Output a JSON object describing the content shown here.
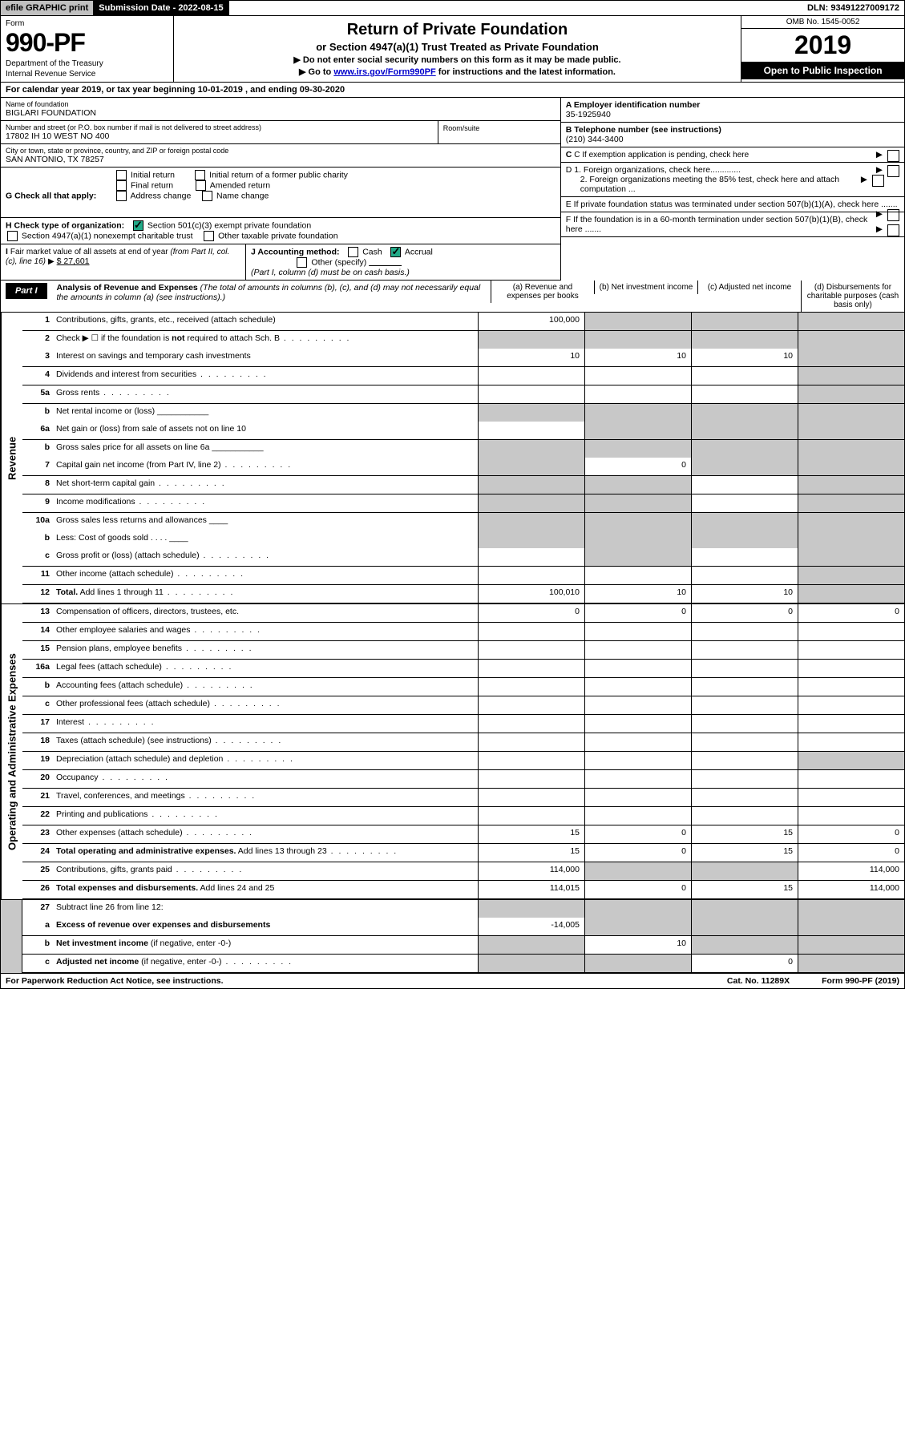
{
  "top": {
    "efile": "efile GRAPHIC print",
    "submission": "Submission Date - 2022-08-15",
    "dln": "DLN: 93491227009172"
  },
  "header": {
    "form_label": "Form",
    "form_number": "990-PF",
    "dept1": "Department of the Treasury",
    "dept2": "Internal Revenue Service",
    "title": "Return of Private Foundation",
    "subtitle": "or Section 4947(a)(1) Trust Treated as Private Foundation",
    "instr1": "▶ Do not enter social security numbers on this form as it may be made public.",
    "instr2": "▶ Go to ",
    "instr2_link": "www.irs.gov/Form990PF",
    "instr2_end": " for instructions and the latest information.",
    "omb": "OMB No. 1545-0052",
    "year": "2019",
    "open": "Open to Public Inspection"
  },
  "cal_year": "For calendar year 2019, or tax year beginning 10-01-2019                        , and ending 09-30-2020",
  "name": {
    "label": "Name of foundation",
    "value": "BIGLARI FOUNDATION"
  },
  "ein": {
    "label": "A Employer identification number",
    "value": "35-1925940"
  },
  "address": {
    "label": "Number and street (or P.O. box number if mail is not delivered to street address)",
    "value": "17802 IH 10 WEST NO 400",
    "room_label": "Room/suite"
  },
  "phone": {
    "label": "B Telephone number (see instructions)",
    "value": "(210) 344-3400"
  },
  "city": {
    "label": "City or town, state or province, country, and ZIP or foreign postal code",
    "value": "SAN ANTONIO, TX  78257"
  },
  "c_exempt": "C If exemption application is pending, check here",
  "g_check": {
    "label": "G Check all that apply:",
    "opts": [
      "Initial return",
      "Final return",
      "Address change",
      "Initial return of a former public charity",
      "Amended return",
      "Name change"
    ]
  },
  "d1": "D 1. Foreign organizations, check here.............",
  "d2": "2. Foreign organizations meeting the 85% test, check here and attach computation ...",
  "e": "E  If private foundation status was terminated under section 507(b)(1)(A), check here .......",
  "h_check": {
    "label": "H Check type of organization:",
    "opt1": "Section 501(c)(3) exempt private foundation",
    "opt2": "Section 4947(a)(1) nonexempt charitable trust",
    "opt3": "Other taxable private foundation"
  },
  "i_fmv": {
    "label": "I Fair market value of all assets at end of year (from Part II, col. (c), line 16)",
    "value": "$  27,601"
  },
  "j_acct": {
    "label": "J Accounting method:",
    "cash": "Cash",
    "accrual": "Accrual",
    "other": "Other (specify)",
    "note": "(Part I, column (d) must be on cash basis.)"
  },
  "f": "F  If the foundation is in a 60-month termination under section 507(b)(1)(B), check here .......",
  "part1": {
    "label": "Part I",
    "title": "Analysis of Revenue and Expenses",
    "note": " (The total of amounts in columns (b), (c), and (d) may not necessarily equal the amounts in column (a) (see instructions).)",
    "cols": {
      "a": "(a)    Revenue and expenses per books",
      "b": "(b)    Net investment income",
      "c": "(c)    Adjusted net income",
      "d": "(d)    Disbursements for charitable purposes (cash basis only)"
    }
  },
  "revenue_label": "Revenue",
  "expenses_label": "Operating and Administrative Expenses",
  "rows_rev": [
    {
      "ln": "1",
      "desc": "Contributions, gifts, grants, etc., received (attach schedule)",
      "a": "100,000",
      "b": "",
      "c": "",
      "d": "",
      "bb": true,
      "shade_b": true,
      "shade_c": true,
      "shade_d": true
    },
    {
      "ln": "2",
      "desc": "Check ▶ ☐ if the foundation is <b>not</b> required to attach Sch. B",
      "a": "",
      "b": "",
      "c": "",
      "d": "",
      "shade_a": true,
      "shade_b": true,
      "shade_c": true,
      "shade_d": true,
      "dots": true
    },
    {
      "ln": "3",
      "desc": "Interest on savings and temporary cash investments",
      "a": "10",
      "b": "10",
      "c": "10",
      "d": "",
      "bb": true,
      "shade_d": true
    },
    {
      "ln": "4",
      "desc": "Dividends and interest from securities",
      "a": "",
      "b": "",
      "c": "",
      "d": "",
      "bb": true,
      "dots": true,
      "shade_d": true
    },
    {
      "ln": "5a",
      "desc": "Gross rents",
      "a": "",
      "b": "",
      "c": "",
      "d": "",
      "bb": true,
      "dots": true,
      "shade_d": true
    },
    {
      "ln": "b",
      "desc": "Net rental income or (loss)  ___________",
      "a": "",
      "b": "",
      "c": "",
      "d": "",
      "shade_a": true,
      "shade_b": true,
      "shade_c": true,
      "shade_d": true
    },
    {
      "ln": "6a",
      "desc": "Net gain or (loss) from sale of assets not on line 10",
      "a": "",
      "b": "",
      "c": "",
      "d": "",
      "bb": true,
      "shade_b": true,
      "shade_c": true,
      "shade_d": true
    },
    {
      "ln": "b",
      "desc": "Gross sales price for all assets on line 6a ___________",
      "a": "",
      "b": "",
      "c": "",
      "d": "",
      "shade_a": true,
      "shade_b": true,
      "shade_c": true,
      "shade_d": true
    },
    {
      "ln": "7",
      "desc": "Capital gain net income (from Part IV, line 2)",
      "a": "",
      "b": "0",
      "c": "",
      "d": "",
      "bb": true,
      "dots": true,
      "shade_a": true,
      "shade_c": true,
      "shade_d": true
    },
    {
      "ln": "8",
      "desc": "Net short-term capital gain",
      "a": "",
      "b": "",
      "c": "",
      "d": "",
      "bb": true,
      "dots": true,
      "shade_a": true,
      "shade_b": true,
      "shade_d": true
    },
    {
      "ln": "9",
      "desc": "Income modifications",
      "a": "",
      "b": "",
      "c": "",
      "d": "",
      "bb": true,
      "dots": true,
      "shade_a": true,
      "shade_b": true,
      "shade_d": true
    },
    {
      "ln": "10a",
      "desc": "Gross sales less returns and allowances  ____",
      "a": "",
      "b": "",
      "c": "",
      "d": "",
      "shade_a": true,
      "shade_b": true,
      "shade_c": true,
      "shade_d": true
    },
    {
      "ln": "b",
      "desc": "Less: Cost of goods sold    .   .   .   .   ____",
      "a": "",
      "b": "",
      "c": "",
      "d": "",
      "shade_a": true,
      "shade_b": true,
      "shade_c": true,
      "shade_d": true
    },
    {
      "ln": "c",
      "desc": "Gross profit or (loss) (attach schedule)",
      "a": "",
      "b": "",
      "c": "",
      "d": "",
      "bb": true,
      "dots": true,
      "shade_b": true,
      "shade_d": true
    },
    {
      "ln": "11",
      "desc": "Other income (attach schedule)",
      "a": "",
      "b": "",
      "c": "",
      "d": "",
      "bb": true,
      "dots": true,
      "shade_d": true
    },
    {
      "ln": "12",
      "desc": "<b>Total.</b> Add lines 1 through 11",
      "a": "100,010",
      "b": "10",
      "c": "10",
      "d": "",
      "bb": true,
      "dots": true,
      "shade_d": true
    }
  ],
  "rows_exp": [
    {
      "ln": "13",
      "desc": "Compensation of officers, directors, trustees, etc.",
      "a": "0",
      "b": "0",
      "c": "0",
      "d": "0",
      "bb": true
    },
    {
      "ln": "14",
      "desc": "Other employee salaries and wages",
      "a": "",
      "b": "",
      "c": "",
      "d": "",
      "bb": true,
      "dots": true
    },
    {
      "ln": "15",
      "desc": "Pension plans, employee benefits",
      "a": "",
      "b": "",
      "c": "",
      "d": "",
      "bb": true,
      "dots": true
    },
    {
      "ln": "16a",
      "desc": "Legal fees (attach schedule)",
      "a": "",
      "b": "",
      "c": "",
      "d": "",
      "bb": true,
      "dots": true
    },
    {
      "ln": "b",
      "desc": "Accounting fees (attach schedule)",
      "a": "",
      "b": "",
      "c": "",
      "d": "",
      "bb": true,
      "dots": true
    },
    {
      "ln": "c",
      "desc": "Other professional fees (attach schedule)",
      "a": "",
      "b": "",
      "c": "",
      "d": "",
      "bb": true,
      "dots": true
    },
    {
      "ln": "17",
      "desc": "Interest",
      "a": "",
      "b": "",
      "c": "",
      "d": "",
      "bb": true,
      "dots": true
    },
    {
      "ln": "18",
      "desc": "Taxes (attach schedule) (see instructions)",
      "a": "",
      "b": "",
      "c": "",
      "d": "",
      "bb": true,
      "dots": true
    },
    {
      "ln": "19",
      "desc": "Depreciation (attach schedule) and depletion",
      "a": "",
      "b": "",
      "c": "",
      "d": "",
      "bb": true,
      "dots": true,
      "shade_d": true
    },
    {
      "ln": "20",
      "desc": "Occupancy",
      "a": "",
      "b": "",
      "c": "",
      "d": "",
      "bb": true,
      "dots": true
    },
    {
      "ln": "21",
      "desc": "Travel, conferences, and meetings",
      "a": "",
      "b": "",
      "c": "",
      "d": "",
      "bb": true,
      "dots": true
    },
    {
      "ln": "22",
      "desc": "Printing and publications",
      "a": "",
      "b": "",
      "c": "",
      "d": "",
      "bb": true,
      "dots": true
    },
    {
      "ln": "23",
      "desc": "Other expenses (attach schedule)",
      "a": "15",
      "b": "0",
      "c": "15",
      "d": "0",
      "bb": true,
      "dots": true
    },
    {
      "ln": "24",
      "desc": "<b>Total operating and administrative expenses.</b> Add lines 13 through 23",
      "a": "15",
      "b": "0",
      "c": "15",
      "d": "0",
      "bb": true,
      "dots": true
    },
    {
      "ln": "25",
      "desc": "Contributions, gifts, grants paid",
      "a": "114,000",
      "b": "",
      "c": "",
      "d": "114,000",
      "bb": true,
      "dots": true,
      "shade_b": true,
      "shade_c": true
    },
    {
      "ln": "26",
      "desc": "<b>Total expenses and disbursements.</b> Add lines 24 and 25",
      "a": "114,015",
      "b": "0",
      "c": "15",
      "d": "114,000",
      "bb": true
    }
  ],
  "rows_bottom": [
    {
      "ln": "27",
      "desc": "Subtract line 26 from line 12:",
      "a": "",
      "b": "",
      "c": "",
      "d": "",
      "shade_a": true,
      "shade_b": true,
      "shade_c": true,
      "shade_d": true
    },
    {
      "ln": "a",
      "desc": "<b>Excess of revenue over expenses and disbursements</b>",
      "a": "-14,005",
      "b": "",
      "c": "",
      "d": "",
      "bb": true,
      "shade_b": true,
      "shade_c": true,
      "shade_d": true
    },
    {
      "ln": "b",
      "desc": "<b>Net investment income</b> (if negative, enter -0-)",
      "a": "",
      "b": "10",
      "c": "",
      "d": "",
      "bb": true,
      "shade_a": true,
      "shade_c": true,
      "shade_d": true
    },
    {
      "ln": "c",
      "desc": "<b>Adjusted net income</b> (if negative, enter -0-)",
      "a": "",
      "b": "",
      "c": "0",
      "d": "",
      "bb": true,
      "dots": true,
      "shade_a": true,
      "shade_b": true,
      "shade_d": true
    }
  ],
  "footer": {
    "left": "For Paperwork Reduction Act Notice, see instructions.",
    "mid": "Cat. No. 11289X",
    "right": "Form 990-PF (2019)"
  }
}
